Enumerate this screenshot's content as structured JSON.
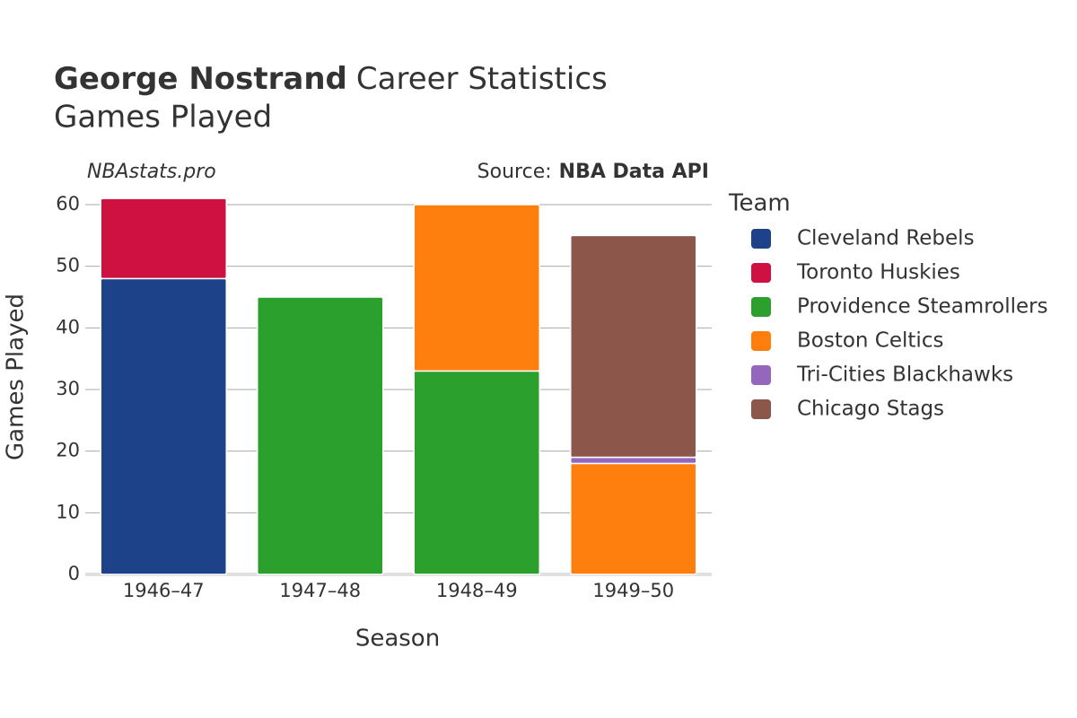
{
  "chart_data": {
    "type": "stacked_bar",
    "title_bold": "George Nostrand",
    "title": "Career Statistics",
    "subtitle": "Games Played",
    "watermark": "NBAstats.pro",
    "source_label": "Source:",
    "source": "NBA Data API",
    "x_label": "Season",
    "y_label": "Games Played",
    "legend_title": "Team",
    "categories": [
      "1946–47",
      "1947–48",
      "1948–49",
      "1949–50"
    ],
    "series": [
      {
        "name": "Cleveland Rebels",
        "color": "#1d428a",
        "values": [
          48,
          null,
          null,
          null
        ]
      },
      {
        "name": "Toronto Huskies",
        "color": "#ce1141",
        "values": [
          13,
          null,
          null,
          null
        ]
      },
      {
        "name": "Providence Steamrollers",
        "color": "#2ca02c",
        "values": [
          null,
          45,
          33,
          null
        ]
      },
      {
        "name": "Boston Celtics",
        "color": "#ff7f0e",
        "values": [
          null,
          null,
          27,
          18
        ]
      },
      {
        "name": "Tri-Cities Blackhawks",
        "color": "#9467bd",
        "values": [
          null,
          null,
          null,
          1
        ]
      },
      {
        "name": "Chicago Stags",
        "color": "#8c564b",
        "values": [
          null,
          null,
          null,
          36
        ]
      }
    ],
    "ylim": [
      0,
      63
    ],
    "yticks": [
      0,
      10,
      20,
      30,
      40,
      50,
      60
    ],
    "grid": true,
    "legend": "right"
  }
}
